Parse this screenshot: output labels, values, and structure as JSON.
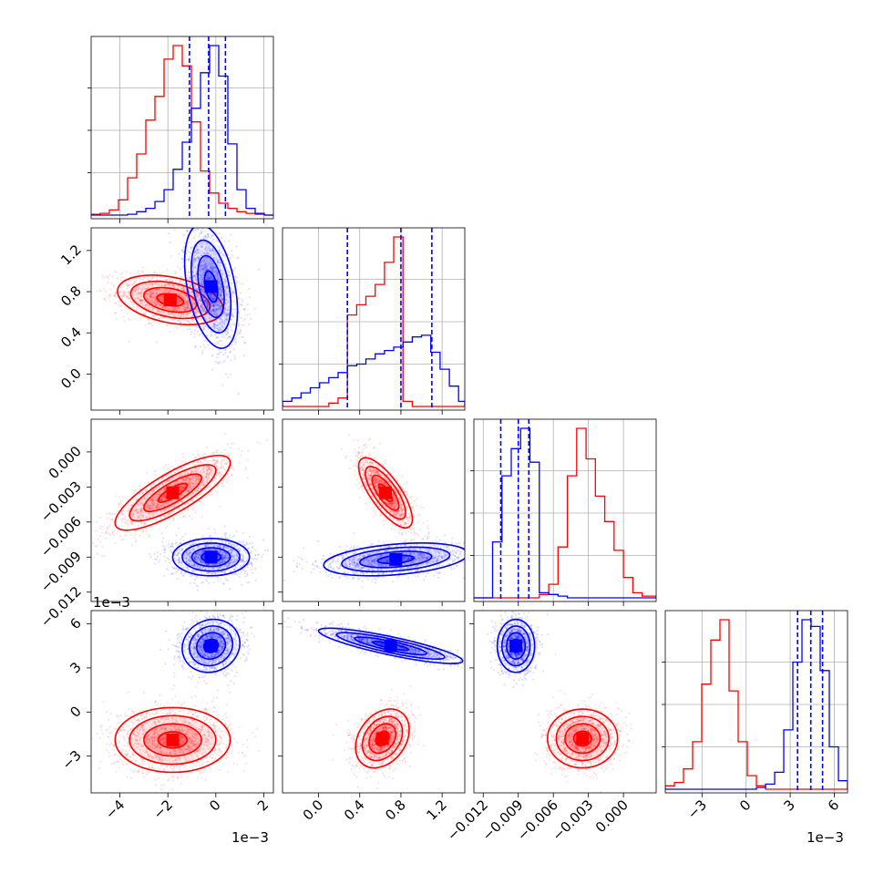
{
  "chart_data": {
    "type": "corner",
    "parameters": 4,
    "series": [
      {
        "color": "#ff0000"
      },
      {
        "color": "#0000ff"
      }
    ],
    "offset_labels": {
      "p1": "1e−3",
      "p4_y": "1e−3",
      "p4_x": "1e−3"
    },
    "ranges": {
      "p1": [
        -5.2,
        2.4
      ],
      "p2": [
        -0.35,
        1.42
      ],
      "p3": [
        -0.0128,
        0.0028
      ],
      "p4": [
        -5.5,
        6.9
      ]
    },
    "ticks": {
      "p1": {
        "values": [
          -4,
          -2,
          0,
          2
        ],
        "labels": [
          "−4",
          "−2",
          "0",
          "2"
        ]
      },
      "p2": {
        "values": [
          0.0,
          0.4,
          0.8,
          1.2
        ],
        "labels": [
          "0.0",
          "0.4",
          "0.8",
          "1.2"
        ]
      },
      "p3": {
        "values": [
          -0.012,
          -0.009,
          -0.006,
          -0.003,
          0.0
        ],
        "labels": [
          "−0.012",
          "−0.009",
          "−0.006",
          "−0.003",
          "0.000"
        ]
      },
      "p4": {
        "values": [
          -3,
          0,
          3,
          6
        ],
        "labels": [
          "−3",
          "0",
          "3",
          "6"
        ]
      }
    },
    "quantiles": {
      "p1": [
        -1.1,
        -0.3,
        0.4
      ],
      "p2": [
        0.28,
        0.8,
        1.1
      ],
      "p3": [
        -0.0105,
        -0.009,
        -0.0081
      ],
      "p4": [
        3.5,
        4.4,
        5.2
      ]
    },
    "histograms": {
      "p1": {
        "edges": [
          -5.2,
          -4.82,
          -4.44,
          -4.06,
          -3.68,
          -3.3,
          -2.92,
          -2.54,
          -2.16,
          -1.78,
          -1.4,
          -1.02,
          -0.64,
          -0.26,
          0.12,
          0.5,
          0.88,
          1.26,
          1.64,
          2.02,
          2.4
        ],
        "red": [
          0.5,
          1,
          3,
          9,
          22,
          36,
          56,
          70,
          92,
          100,
          88,
          55,
          26,
          13,
          7,
          4,
          2,
          1,
          0.5,
          0
        ],
        "blue": [
          0,
          0,
          0,
          0,
          0.5,
          2,
          4,
          8,
          15,
          27,
          43,
          63,
          84,
          100,
          82,
          42,
          15,
          4,
          1,
          0
        ]
      },
      "p2": {
        "edges": [
          -0.35,
          -0.26,
          -0.17,
          -0.08,
          0.01,
          0.1,
          0.19,
          0.28,
          0.37,
          0.46,
          0.55,
          0.64,
          0.73,
          0.82,
          0.91,
          1.0,
          1.09,
          1.18,
          1.27,
          1.36,
          1.42
        ],
        "red": [
          0,
          0,
          0,
          0,
          0,
          2,
          5,
          54,
          60,
          65,
          72,
          85,
          100,
          3,
          0,
          0,
          0,
          0,
          0,
          0
        ],
        "blue": [
          3,
          5,
          8,
          11,
          14,
          17,
          20,
          24,
          25,
          28,
          31,
          33,
          35,
          38,
          41,
          42,
          32,
          22,
          12,
          3
        ]
      },
      "p3": {
        "edges": [
          -0.0128,
          -0.012,
          -0.0112,
          -0.0104,
          -0.0096,
          -0.0088,
          -0.008,
          -0.0072,
          -0.0064,
          -0.0056,
          -0.0048,
          -0.004,
          -0.0032,
          -0.0024,
          -0.0016,
          -0.0008,
          0.0,
          0.0008,
          0.0016,
          0.0028
        ],
        "red": [
          0,
          0,
          0,
          0,
          0,
          0,
          0,
          2,
          8,
          30,
          72,
          100,
          82,
          60,
          45,
          28,
          12,
          3,
          1
        ],
        "blue": [
          0,
          0,
          33,
          72,
          88,
          100,
          80,
          3,
          2,
          1,
          0,
          0,
          0,
          0,
          0,
          0,
          0,
          0,
          0
        ]
      },
      "p4": {
        "edges": [
          -5.5,
          -4.88,
          -4.26,
          -3.64,
          -3.02,
          -2.4,
          -1.78,
          -1.16,
          -0.54,
          0.08,
          0.7,
          1.32,
          1.94,
          2.56,
          3.18,
          3.8,
          4.42,
          5.04,
          5.66,
          6.28,
          6.9
        ],
        "red": [
          2,
          4,
          12,
          28,
          62,
          88,
          100,
          58,
          28,
          8,
          2,
          0,
          0,
          0,
          0,
          0,
          0,
          0,
          0,
          0
        ],
        "blue": [
          0,
          0,
          0,
          0,
          0,
          0,
          0,
          0,
          0,
          0,
          1,
          3,
          10,
          35,
          75,
          100,
          96,
          70,
          25,
          5
        ]
      }
    },
    "scatter_2d": {
      "p2_vs_p1": {
        "red": {
          "mean": [
            -1.9,
            0.72
          ],
          "sd": [
            1.1,
            0.12
          ],
          "rho": -0.35
        },
        "blue": {
          "mean": [
            -0.2,
            0.85
          ],
          "sd": [
            0.55,
            0.3
          ],
          "rho": -0.4
        }
      },
      "p3_vs_p1": {
        "red": {
          "mean": [
            -1.8,
            -0.0035
          ],
          "sd": [
            1.2,
            0.0016
          ],
          "rho": 0.8
        },
        "blue": {
          "mean": [
            -0.2,
            -0.009
          ],
          "sd": [
            0.8,
            0.0008
          ],
          "rho": 0.0
        }
      },
      "p4_vs_p1": {
        "red": {
          "mean": [
            -1.8,
            -1.9
          ],
          "sd": [
            1.2,
            1.1
          ],
          "rho": 0.0
        },
        "blue": {
          "mean": [
            -0.2,
            4.5
          ],
          "sd": [
            0.6,
            0.9
          ],
          "rho": 0.1
        }
      },
      "p3_vs_p2": {
        "red": {
          "mean": [
            0.65,
            -0.0035
          ],
          "sd": [
            0.13,
            0.0015
          ],
          "rho": -0.75
        },
        "blue": {
          "mean": [
            0.75,
            -0.0092
          ],
          "sd": [
            0.35,
            0.0007
          ],
          "rho": 0.35
        }
      },
      "p4_vs_p2": {
        "red": {
          "mean": [
            0.62,
            -1.8
          ],
          "sd": [
            0.13,
            1.0
          ],
          "rho": 0.3
        },
        "blue": {
          "mean": [
            0.7,
            4.5
          ],
          "sd": [
            0.35,
            0.6
          ],
          "rho": -0.85
        }
      },
      "p4_vs_p3": {
        "red": {
          "mean": [
            -0.0035,
            -1.8
          ],
          "sd": [
            0.0015,
            1.0
          ],
          "rho": 0.0
        },
        "blue": {
          "mean": [
            -0.0092,
            4.5
          ],
          "sd": [
            0.0008,
            0.9
          ],
          "rho": 0.0
        }
      }
    },
    "grid": true
  }
}
